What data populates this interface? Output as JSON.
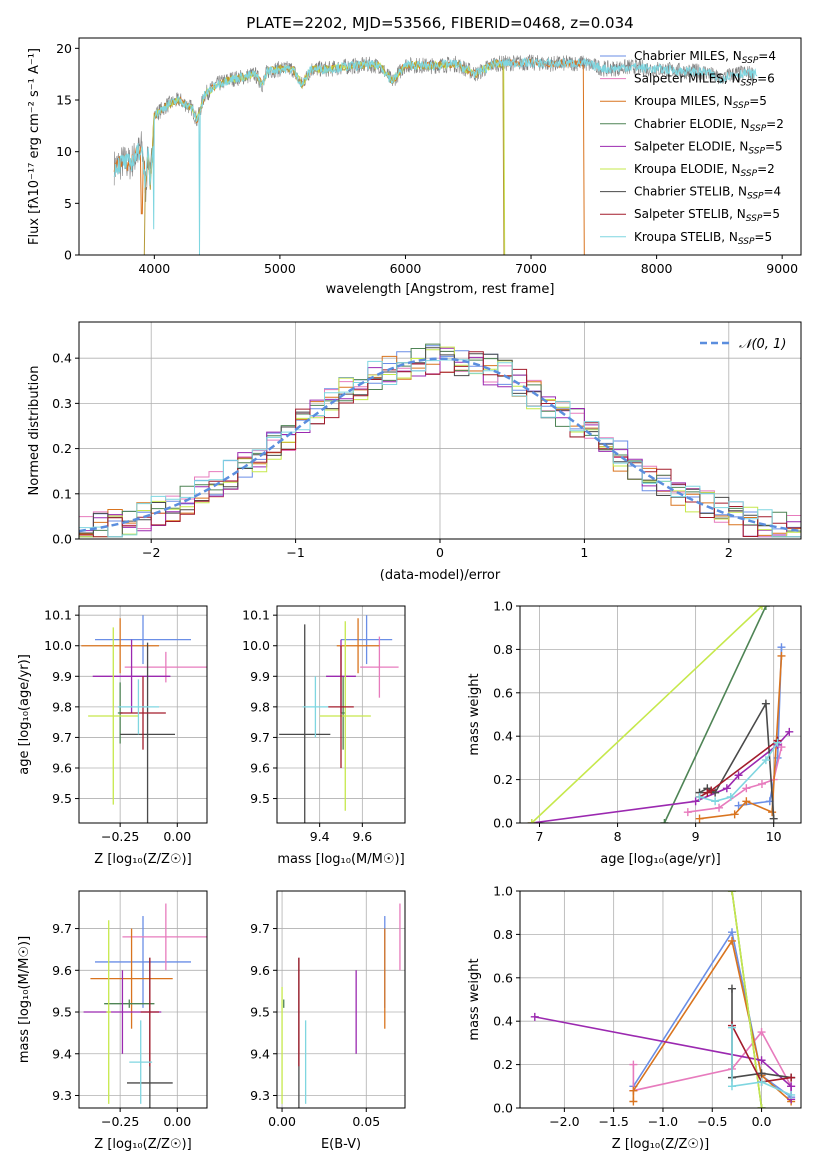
{
  "figure": {
    "title": "PLATE=2202, MJD=53566, FIBERID=0468, z=0.034"
  },
  "models": [
    {
      "label": "Chabrier MILES, N",
      "sub": "SSP",
      "suffix": "=4",
      "color": "#6a8ee6"
    },
    {
      "label": "Salpeter MILES, N",
      "sub": "SSP",
      "suffix": "=6",
      "color": "#e77bbd"
    },
    {
      "label": "Kroupa MILES, N",
      "sub": "SSP",
      "suffix": "=5",
      "color": "#d9741f"
    },
    {
      "label": "Chabrier ELODIE, N",
      "sub": "SSP",
      "suffix": "=2",
      "color": "#4e8455"
    },
    {
      "label": "Salpeter ELODIE, N",
      "sub": "SSP",
      "suffix": "=5",
      "color": "#9b29b0"
    },
    {
      "label": "Kroupa ELODIE, N",
      "sub": "SSP",
      "suffix": "=2",
      "color": "#c6e84b"
    },
    {
      "label": "Chabrier STELIB, N",
      "sub": "SSP",
      "suffix": "=4",
      "color": "#4a4a4a"
    },
    {
      "label": "Salpeter STELIB, N",
      "sub": "SSP",
      "suffix": "=5",
      "color": "#a31c2c"
    },
    {
      "label": "Kroupa STELIB, N",
      "sub": "SSP",
      "suffix": "=5",
      "color": "#7fd6e0"
    }
  ],
  "chart_data": [
    {
      "id": "spectrum",
      "type": "line",
      "xlabel": "wavelength [Angstrom, rest frame]",
      "ylabel": "Flux [fλ10⁻¹⁷ erg cm⁻² s⁻¹ A⁻¹]",
      "xlim": [
        3400,
        9150
      ],
      "ylim": [
        0,
        21
      ],
      "xticks": [
        4000,
        5000,
        6000,
        7000,
        8000,
        9000
      ],
      "yticks": [
        0,
        5,
        10,
        15,
        20
      ],
      "grid": false,
      "legend": "top-right",
      "data_color": "#808080",
      "model_color": "#7fd6e0",
      "flux_points": [
        [
          3680,
          8.5
        ],
        [
          3750,
          9.0
        ],
        [
          3800,
          8.8
        ],
        [
          3850,
          9.5
        ],
        [
          3900,
          10.5
        ],
        [
          3933,
          6.5
        ],
        [
          3950,
          10.0
        ],
        [
          3968,
          7.0
        ],
        [
          4000,
          13.5
        ],
        [
          4100,
          14.5
        ],
        [
          4200,
          15.0
        ],
        [
          4300,
          14.2
        ],
        [
          4340,
          13.0
        ],
        [
          4400,
          15.5
        ],
        [
          4500,
          16.5
        ],
        [
          4600,
          17.0
        ],
        [
          4700,
          17.2
        ],
        [
          4800,
          17.5
        ],
        [
          4861,
          16.5
        ],
        [
          4900,
          17.8
        ],
        [
          5000,
          18.0
        ],
        [
          5100,
          18.0
        ],
        [
          5175,
          16.5
        ],
        [
          5250,
          18.0
        ],
        [
          5400,
          18.0
        ],
        [
          5500,
          18.2
        ],
        [
          5600,
          18.3
        ],
        [
          5700,
          18.4
        ],
        [
          5800,
          18.3
        ],
        [
          5893,
          16.8
        ],
        [
          6000,
          18.4
        ],
        [
          6200,
          18.3
        ],
        [
          6400,
          18.5
        ],
        [
          6563,
          17.5
        ],
        [
          6700,
          18.5
        ],
        [
          6900,
          18.6
        ],
        [
          7000,
          18.6
        ],
        [
          7200,
          18.5
        ],
        [
          7400,
          18.6
        ],
        [
          7600,
          18.0
        ],
        [
          7800,
          18.2
        ],
        [
          8000,
          18.0
        ],
        [
          8200,
          17.8
        ],
        [
          8400,
          17.7
        ],
        [
          8500,
          17.0
        ],
        [
          8600,
          17.5
        ],
        [
          8700,
          17.6
        ],
        [
          8800,
          17.5
        ]
      ]
    },
    {
      "id": "residuals",
      "type": "bar",
      "xlabel": "(data-model)/error",
      "ylabel": "Normed distribution",
      "xlim": [
        -2.5,
        2.5
      ],
      "ylim": [
        0,
        0.48
      ],
      "xticks": [
        -2,
        -1,
        0,
        1,
        2
      ],
      "yticks": [
        0.0,
        0.1,
        0.2,
        0.3,
        0.4
      ],
      "grid": true,
      "legend": "top-right",
      "reference": {
        "name": "𝒩(0, 1)",
        "mean": 0,
        "sigma": 1,
        "color": "#5b8ede"
      },
      "bin_width": 0.1
    },
    {
      "id": "age-vs-Z",
      "type": "scatter",
      "xlabel": "Z [log₁₀(Z/Z☉)]",
      "ylabel": "age  [log₁₀(age/yr)]",
      "xlim": [
        -0.43,
        0.13
      ],
      "ylim": [
        9.42,
        10.13
      ],
      "xticks": [
        -0.25,
        0.0
      ],
      "yticks": [
        9.5,
        9.6,
        9.7,
        9.8,
        9.9,
        10.0,
        10.1
      ],
      "grid": true,
      "points": [
        {
          "x": -0.15,
          "y": 10.02,
          "xerr": 0.21,
          "yerr": 0.08
        },
        {
          "x": -0.05,
          "y": 9.93,
          "xerr": 0.18,
          "yerr": 0.05
        },
        {
          "x": -0.25,
          "y": 10.0,
          "xerr": 0.17,
          "yerr": 0.09
        },
        {
          "x": -0.25,
          "y": 9.78,
          "xerr": 0.01,
          "yerr": 0.1
        },
        {
          "x": -0.2,
          "y": 9.9,
          "xerr": 0.17,
          "yerr": 0.12
        },
        {
          "x": -0.28,
          "y": 9.77,
          "xerr": 0.11,
          "yerr": 0.29
        },
        {
          "x": -0.13,
          "y": 9.71,
          "xerr": 0.12,
          "yerr": 0.3
        },
        {
          "x": -0.15,
          "y": 9.78,
          "xerr": 0.1,
          "yerr": 0.12
        },
        {
          "x": -0.17,
          "y": 9.8,
          "xerr": 0.09,
          "yerr": 0.09
        }
      ]
    },
    {
      "id": "age-vs-mass",
      "type": "scatter",
      "xlabel": "mass [log₁₀(M/M☉)]",
      "ylabel": "",
      "xlim": [
        9.2,
        9.8
      ],
      "ylim": [
        9.42,
        10.13
      ],
      "xticks": [
        9.4,
        9.6
      ],
      "yticks": [
        9.5,
        9.6,
        9.7,
        9.8,
        9.9,
        10.0,
        10.1
      ],
      "grid": true,
      "points": [
        {
          "x": 9.62,
          "y": 10.02,
          "xerr": 0.12,
          "yerr": 0.08
        },
        {
          "x": 9.68,
          "y": 9.93,
          "xerr": 0.09,
          "yerr": 0.1
        },
        {
          "x": 9.58,
          "y": 10.0,
          "xerr": 0.1,
          "yerr": 0.09
        },
        {
          "x": 9.51,
          "y": 9.78,
          "xerr": 0.01,
          "yerr": 0.12
        },
        {
          "x": 9.5,
          "y": 9.9,
          "xerr": 0.07,
          "yerr": 0.12
        },
        {
          "x": 9.52,
          "y": 9.77,
          "xerr": 0.12,
          "yerr": 0.31
        },
        {
          "x": 9.33,
          "y": 9.71,
          "xerr": 0.12,
          "yerr": 0.36
        },
        {
          "x": 9.5,
          "y": 9.8,
          "xerr": 0.06,
          "yerr": 0.2
        },
        {
          "x": 9.38,
          "y": 9.8,
          "xerr": 0.06,
          "yerr": 0.1
        }
      ]
    },
    {
      "id": "weight-vs-age",
      "type": "line",
      "xlabel": "age  [log₁₀(age/yr)]",
      "ylabel": "mass weight",
      "xlim": [
        6.75,
        10.35
      ],
      "ylim": [
        0,
        1.0
      ],
      "xticks": [
        7,
        8,
        9,
        10
      ],
      "yticks": [
        0.0,
        0.2,
        0.4,
        0.6,
        0.8,
        1.0
      ],
      "grid": true,
      "series": [
        {
          "x": [
            9.55,
            9.95,
            10.05,
            10.1
          ],
          "y": [
            0.08,
            0.1,
            0.3,
            0.81
          ]
        },
        {
          "x": [
            8.9,
            9.3,
            9.65,
            9.85,
            10.0,
            10.1
          ],
          "y": [
            0.05,
            0.07,
            0.16,
            0.18,
            0.2,
            0.35
          ]
        },
        {
          "x": [
            9.05,
            9.5,
            9.65,
            9.98,
            10.1
          ],
          "y": [
            0.02,
            0.04,
            0.1,
            0.05,
            0.77
          ]
        },
        {
          "x": [
            8.6,
            9.9
          ],
          "y": [
            0.0,
            1.0
          ]
        },
        {
          "x": [
            6.9,
            9.0,
            9.4,
            9.55,
            10.05,
            10.2
          ],
          "y": [
            0.0,
            0.1,
            0.16,
            0.22,
            0.36,
            0.42
          ]
        },
        {
          "x": [
            6.9,
            9.85
          ],
          "y": [
            0.0,
            1.0
          ]
        },
        {
          "x": [
            9.05,
            9.15,
            9.25,
            9.9,
            10.0
          ],
          "y": [
            0.14,
            0.16,
            0.14,
            0.55,
            0.02
          ]
        },
        {
          "x": [
            9.05,
            9.15,
            9.2,
            10.05
          ],
          "y": [
            0.12,
            0.14,
            0.15,
            0.38
          ]
        },
        {
          "x": [
            9.05,
            9.25,
            9.45,
            9.9,
            10.05
          ],
          "y": [
            0.12,
            0.1,
            0.12,
            0.29,
            0.37
          ]
        }
      ]
    },
    {
      "id": "mass-vs-Z",
      "type": "scatter",
      "xlabel": "Z [log₁₀(Z/Z☉)]",
      "ylabel": "mass [log₁₀(M/M☉)]",
      "xlim": [
        -0.43,
        0.13
      ],
      "ylim": [
        9.27,
        9.79
      ],
      "xticks": [
        -0.25,
        0.0
      ],
      "yticks": [
        9.3,
        9.4,
        9.5,
        9.6,
        9.7
      ],
      "grid": true,
      "points": [
        {
          "x": -0.15,
          "y": 9.62,
          "xerr": 0.21,
          "yerr": 0.11
        },
        {
          "x": -0.05,
          "y": 9.68,
          "xerr": 0.19,
          "yerr": 0.08
        },
        {
          "x": -0.2,
          "y": 9.58,
          "xerr": 0.18,
          "yerr": 0.12
        },
        {
          "x": -0.21,
          "y": 9.52,
          "xerr": 0.11,
          "yerr": 0.01
        },
        {
          "x": -0.24,
          "y": 9.5,
          "xerr": 0.17,
          "yerr": 0.1
        },
        {
          "x": -0.3,
          "y": 9.5,
          "xerr": 0.01,
          "yerr": 0.22
        },
        {
          "x": -0.12,
          "y": 9.33,
          "xerr": 0.1,
          "yerr": 0.3
        },
        {
          "x": -0.12,
          "y": 9.5,
          "xerr": 0.04,
          "yerr": 0.13
        },
        {
          "x": -0.16,
          "y": 9.38,
          "xerr": 0.05,
          "yerr": 0.1
        }
      ]
    },
    {
      "id": "mass-vs-ebv",
      "type": "scatter",
      "xlabel": "E(B-V)",
      "ylabel": "",
      "xlim": [
        -0.003,
        0.073
      ],
      "ylim": [
        9.27,
        9.79
      ],
      "xticks": [
        0.0,
        0.05
      ],
      "yticks": [
        9.3,
        9.4,
        9.5,
        9.6,
        9.7
      ],
      "grid": true,
      "points": [
        {
          "x": 0.061,
          "y": 9.62,
          "xerr": 0,
          "yerr": 0.11
        },
        {
          "x": 0.07,
          "y": 9.68,
          "xerr": 0,
          "yerr": 0.08
        },
        {
          "x": 0.061,
          "y": 9.58,
          "xerr": 0,
          "yerr": 0.12
        },
        {
          "x": 0.001,
          "y": 9.52,
          "xerr": 0,
          "yerr": 0.01
        },
        {
          "x": 0.044,
          "y": 9.5,
          "xerr": 0,
          "yerr": 0.1
        },
        {
          "x": 0.0,
          "y": 9.42,
          "xerr": 0,
          "yerr": 0.14
        },
        {
          "x": 0.01,
          "y": 9.33,
          "xerr": 0,
          "yerr": 0.3
        },
        {
          "x": 0.01,
          "y": 9.5,
          "xerr": 0,
          "yerr": 0.13
        },
        {
          "x": 0.014,
          "y": 9.38,
          "xerr": 0,
          "yerr": 0.1
        }
      ]
    },
    {
      "id": "weight-vs-Z",
      "type": "line",
      "xlabel": "Z [log₁₀(Z/Z☉)]",
      "ylabel": "mass weight",
      "xlim": [
        -2.45,
        0.4
      ],
      "ylim": [
        0,
        1.0
      ],
      "xticks": [
        -2.0,
        -1.5,
        -1.0,
        -0.5,
        0.0
      ],
      "yticks": [
        0.0,
        0.2,
        0.4,
        0.6,
        0.8,
        1.0
      ],
      "grid": true,
      "series": [
        {
          "x": [
            -1.3,
            -0.3,
            0.0,
            0.3
          ],
          "y": [
            0.1,
            0.81,
            0.15,
            0.05
          ]
        },
        {
          "x": [
            -1.3,
            -1.3,
            -0.3,
            0.0,
            0.3
          ],
          "y": [
            0.2,
            0.08,
            0.18,
            0.35,
            0.1
          ]
        },
        {
          "x": [
            -1.3,
            -1.3,
            -0.3,
            0.0,
            0.3
          ],
          "y": [
            0.03,
            0.08,
            0.77,
            0.15,
            0.03
          ]
        },
        {
          "x": [
            -0.3,
            0.0
          ],
          "y": [
            1.0,
            0.0
          ]
        },
        {
          "x": [
            -2.3,
            0.0,
            0.3,
            0.3
          ],
          "y": [
            0.42,
            0.22,
            0.1,
            0.04
          ]
        },
        {
          "x": [
            -0.3,
            0.0
          ],
          "y": [
            1.0,
            0.0
          ]
        },
        {
          "x": [
            -0.3,
            -0.3,
            0.0,
            0.3
          ],
          "y": [
            0.55,
            0.14,
            0.16,
            0.14
          ]
        },
        {
          "x": [
            -0.3,
            0.0,
            0.3
          ],
          "y": [
            0.38,
            0.12,
            0.14
          ]
        },
        {
          "x": [
            -0.3,
            -0.3,
            0.0,
            0.3
          ],
          "y": [
            0.37,
            0.1,
            0.12,
            0.06
          ]
        }
      ]
    }
  ]
}
